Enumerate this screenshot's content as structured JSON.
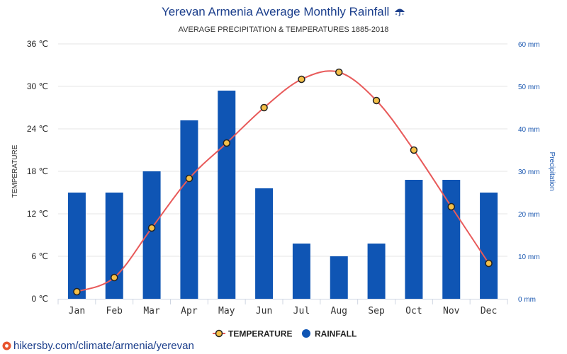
{
  "header": {
    "title": "Yerevan Armenia Average Monthly Rainfall",
    "title_icon": "umbrella-rain-icon",
    "subtitle": "AVERAGE PRECIPITATION & TEMPERATURES 1885-2018"
  },
  "footer": {
    "url": "hikersby.com/climate/armenia/yerevan",
    "icon": "map-pin-icon"
  },
  "chart_data": {
    "type": "bar",
    "categories": [
      "Jan",
      "Feb",
      "Mar",
      "Apr",
      "May",
      "Jun",
      "Jul",
      "Aug",
      "Sep",
      "Oct",
      "Nov",
      "Dec"
    ],
    "series": [
      {
        "name": "TEMPERATURE",
        "kind": "line",
        "axis": "left",
        "color": "#e85a5a",
        "marker_fill": "#f5c048",
        "values": [
          1,
          3,
          10,
          17,
          22,
          27,
          31,
          32,
          28,
          21,
          13,
          5
        ]
      },
      {
        "name": "RAINFALL",
        "kind": "bar",
        "axis": "right",
        "color": "#0f55b4",
        "values": [
          25,
          25,
          30,
          42,
          49,
          26,
          13,
          10,
          13,
          28,
          28,
          25
        ]
      }
    ],
    "y_left": {
      "label": "TEMPERATURE",
      "range": [
        0,
        36
      ],
      "ticks": [
        "0 ℃",
        "6 ℃",
        "12 ℃",
        "18 ℃",
        "24 ℃",
        "30 ℃",
        "36 ℃"
      ]
    },
    "y_right": {
      "label": "Precipitation",
      "range": [
        0,
        60
      ],
      "ticks": [
        "0 mm",
        "10 mm",
        "20 mm",
        "30 mm",
        "40 mm",
        "50 mm",
        "60 mm"
      ]
    },
    "grid": true,
    "legend": {
      "position": "bottom-center",
      "items": [
        "TEMPERATURE",
        "RAINFALL"
      ]
    }
  }
}
